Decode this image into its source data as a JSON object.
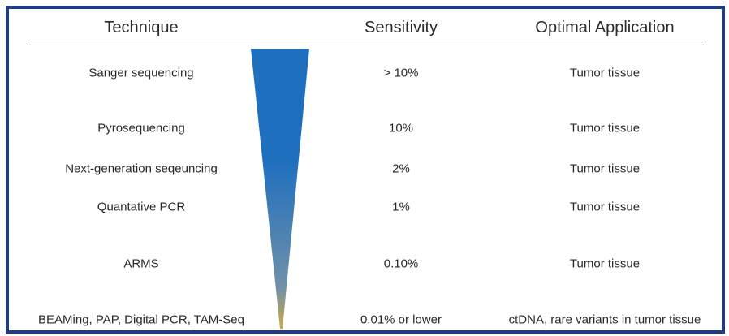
{
  "table": {
    "headers": {
      "technique": "Technique",
      "sensitivity": "Sensitivity",
      "application": "Optimal Application"
    },
    "rows": [
      {
        "technique": "Sanger sequencing",
        "sensitivity": "> 10%",
        "application": "Tumor tissue"
      },
      {
        "technique": "Pyrosequencing",
        "sensitivity": "10%",
        "application": "Tumor tissue"
      },
      {
        "technique": "Next-generation seqeuncing",
        "sensitivity": "2%",
        "application": "Tumor tissue"
      },
      {
        "technique": "Quantative PCR",
        "sensitivity": "1%",
        "application": "Tumor tissue"
      },
      {
        "technique": "ARMS",
        "sensitivity": "0.10%",
        "application": "Tumor tissue"
      },
      {
        "technique": "BEAMing, PAP, Digital PCR, TAM-Seq",
        "sensitivity": "0.01% or lower",
        "application": "ctDNA, rare variants in tumor tissue"
      }
    ]
  },
  "colors": {
    "frame_border": "#1f3a8a",
    "gradient_top": "#1f6fbf",
    "gradient_mid": "#6f91a9",
    "gradient_bottom": "#c9a94a"
  }
}
